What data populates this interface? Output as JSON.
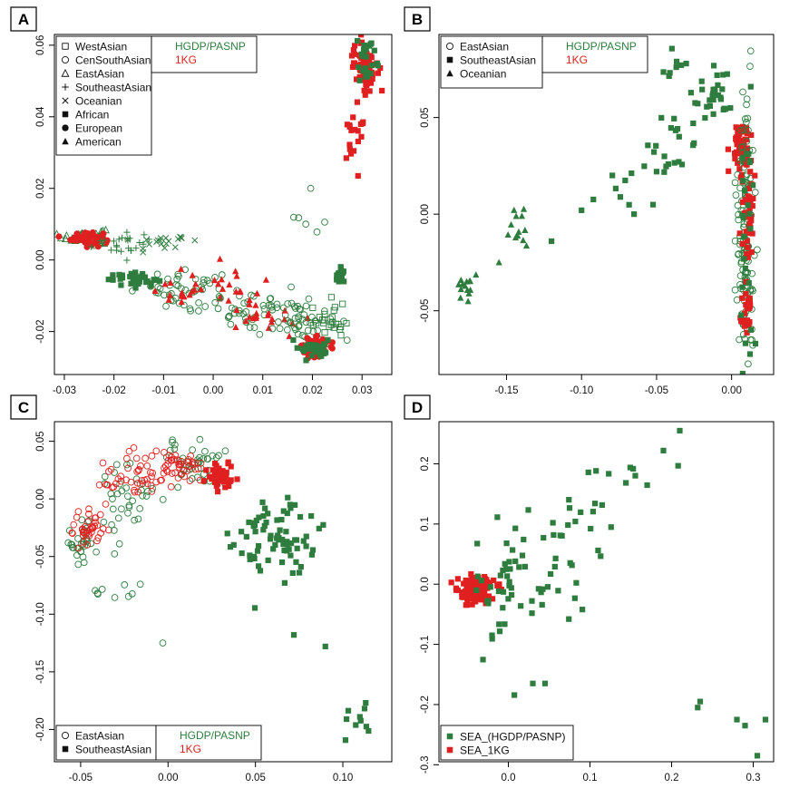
{
  "colors": {
    "hgdp": "#2e7d3e",
    "kg": "#e02020",
    "axis": "#000000"
  },
  "chart_data": [
    {
      "type": "scatter",
      "panel": "A",
      "xlim": [
        -0.032,
        0.036
      ],
      "ylim": [
        -0.032,
        0.063
      ],
      "xticks": {
        "values": [
          -0.03,
          -0.02,
          -0.01,
          0.0,
          0.01,
          0.02,
          0.03
        ],
        "labels": [
          "-0.03",
          "-0.02",
          "-0.01",
          "0.00",
          "0.01",
          "0.02",
          "0.03"
        ]
      },
      "yticks": {
        "values": [
          -0.02,
          0.0,
          0.02,
          0.04,
          0.06
        ],
        "labels": [
          "-0.02",
          "0.00",
          "0.02",
          "0.04",
          "0.06"
        ]
      },
      "legend_position": "top-left",
      "legend_shapes": [
        {
          "shape": "square-open",
          "label": "WestAsian"
        },
        {
          "shape": "circle-open",
          "label": "CenSouthAsian"
        },
        {
          "shape": "triangle-open",
          "label": "EastAsian"
        },
        {
          "shape": "plus",
          "label": "SoutheastAsian"
        },
        {
          "shape": "cross",
          "label": "Oceanian"
        },
        {
          "shape": "square",
          "label": "African"
        },
        {
          "shape": "circle",
          "label": "European"
        },
        {
          "shape": "triangle",
          "label": "American"
        }
      ],
      "legend_sources": [
        {
          "label": "HGDP/PASNP",
          "color": "#2e7d3e"
        },
        {
          "label": "1KG",
          "color": "#e02020"
        }
      ],
      "clusters": [
        {
          "color": "#2e7d3e",
          "shape": "triangle-open",
          "cx": -0.026,
          "cy": 0.0065,
          "sx": 0.0022,
          "sy": 0.0012,
          "n": 40
        },
        {
          "color": "#e02020",
          "shape": "circle",
          "cx": -0.0255,
          "cy": 0.0062,
          "sx": 0.0016,
          "sy": 0.0009,
          "n": 60
        },
        {
          "color": "#2e7d3e",
          "shape": "plus",
          "cx": -0.019,
          "cy": 0.0045,
          "sx": 0.0035,
          "sy": 0.0015,
          "n": 25
        },
        {
          "color": "#2e7d3e",
          "shape": "cross",
          "cx": -0.01,
          "cy": 0.005,
          "sx": 0.0035,
          "sy": 0.0015,
          "n": 20
        },
        {
          "color": "#2e7d3e",
          "shape": "square",
          "cx": -0.016,
          "cy": -0.0055,
          "sx": 0.0025,
          "sy": 0.0009,
          "n": 30
        },
        {
          "color": "#2e7d3e",
          "shape": "circle-open",
          "cx": -0.005,
          "cy": -0.0085,
          "sx": 0.0055,
          "sy": 0.0025,
          "n": 45
        },
        {
          "color": "#e02020",
          "shape": "triangle",
          "cx": -0.004,
          "cy": -0.0085,
          "sx": 0.0045,
          "sy": 0.002,
          "n": 25
        },
        {
          "color": "#2e7d3e",
          "shape": "circle-open",
          "cx": 0.008,
          "cy": -0.014,
          "sx": 0.0045,
          "sy": 0.003,
          "n": 45
        },
        {
          "color": "#e02020",
          "shape": "triangle",
          "cx": 0.01,
          "cy": -0.012,
          "sx": 0.0045,
          "sy": 0.0045,
          "n": 30
        },
        {
          "color": "#2e7d3e",
          "shape": "circle-open",
          "cx": 0.018,
          "cy": -0.017,
          "sx": 0.003,
          "sy": 0.003,
          "n": 40
        },
        {
          "color": "#2e7d3e",
          "shape": "square-open",
          "cx": 0.023,
          "cy": -0.017,
          "sx": 0.0018,
          "sy": 0.003,
          "n": 25
        },
        {
          "color": "#e02020",
          "shape": "circle",
          "cx": 0.0205,
          "cy": -0.0245,
          "sx": 0.0013,
          "sy": 0.0013,
          "n": 110
        },
        {
          "color": "#2e7d3e",
          "shape": "square",
          "cx": 0.0205,
          "cy": -0.0245,
          "sx": 0.0015,
          "sy": 0.0016,
          "n": 30
        },
        {
          "color": "#2e7d3e",
          "shape": "square",
          "cx": 0.0255,
          "cy": -0.004,
          "sx": 0.0007,
          "sy": 0.0012,
          "n": 15
        },
        {
          "color": "#e02020",
          "shape": "square",
          "cx": 0.0305,
          "cy": 0.054,
          "sx": 0.0012,
          "sy": 0.0032,
          "n": 80
        },
        {
          "color": "#2e7d3e",
          "shape": "square",
          "cx": 0.0312,
          "cy": 0.056,
          "sx": 0.0012,
          "sy": 0.0035,
          "n": 25
        },
        {
          "color": "#e02020",
          "shape": "square",
          "cx": 0.0285,
          "cy": 0.036,
          "sx": 0.0015,
          "sy": 0.006,
          "n": 20
        },
        {
          "color": "#2e7d3e",
          "shape": "circle-open",
          "cx": 0.02,
          "cy": 0.012,
          "sx": 0.003,
          "sy": 0.005,
          "n": 6
        }
      ]
    },
    {
      "type": "scatter",
      "panel": "B",
      "xlim": [
        -0.195,
        0.028
      ],
      "ylim": [
        -0.083,
        0.093
      ],
      "xticks": {
        "values": [
          -0.15,
          -0.1,
          -0.05,
          0.0
        ],
        "labels": [
          "-0.15",
          "-0.10",
          "-0.05",
          "0.00"
        ]
      },
      "yticks": {
        "values": [
          -0.05,
          0.0,
          0.05
        ],
        "labels": [
          "-0.05",
          "0.00",
          "0.05"
        ]
      },
      "legend_position": "top-left",
      "legend_shapes": [
        {
          "shape": "circle-open",
          "label": "EastAsian"
        },
        {
          "shape": "square",
          "label": "SoutheastAsian"
        },
        {
          "shape": "triangle",
          "label": "Oceanian"
        }
      ],
      "legend_sources": [
        {
          "label": "HGDP/PASNP",
          "color": "#2e7d3e"
        },
        {
          "label": "1KG",
          "color": "#e02020"
        }
      ],
      "clusters": [
        {
          "color": "#2e7d3e",
          "shape": "triangle",
          "cx": -0.178,
          "cy": -0.037,
          "sx": 0.003,
          "sy": 0.005,
          "n": 14
        },
        {
          "color": "#2e7d3e",
          "shape": "triangle",
          "cx": -0.141,
          "cy": -0.007,
          "sx": 0.004,
          "sy": 0.006,
          "n": 12
        },
        {
          "color": "#2e7d3e",
          "shape": "square",
          "cx": -0.07,
          "cy": 0.015,
          "sx": 0.012,
          "sy": 0.008,
          "n": 8
        },
        {
          "color": "#2e7d3e",
          "shape": "square",
          "cx": -0.038,
          "cy": 0.035,
          "sx": 0.008,
          "sy": 0.01,
          "n": 20
        },
        {
          "color": "#2e7d3e",
          "shape": "square",
          "cx": -0.04,
          "cy": 0.075,
          "sx": 0.005,
          "sy": 0.007,
          "n": 8
        },
        {
          "color": "#2e7d3e",
          "shape": "square",
          "cx": -0.012,
          "cy": 0.062,
          "sx": 0.007,
          "sy": 0.007,
          "n": 30
        },
        {
          "color": "#e02020",
          "shape": "square",
          "cx": 0.006,
          "cy": 0.036,
          "sx": 0.0025,
          "sy": 0.006,
          "n": 55
        },
        {
          "color": "#2e7d3e",
          "shape": "circle-open",
          "cx": 0.009,
          "cy": -0.01,
          "sx": 0.003,
          "sy": 0.035,
          "n": 140
        },
        {
          "color": "#e02020",
          "shape": "square",
          "cx": 0.011,
          "cy": 0.005,
          "sx": 0.0018,
          "sy": 0.015,
          "n": 45
        },
        {
          "color": "#e02020",
          "shape": "square",
          "cx": 0.01,
          "cy": -0.05,
          "sx": 0.002,
          "sy": 0.006,
          "n": 25
        },
        {
          "color": "#2e7d3e",
          "shape": "square",
          "cx": 0.01,
          "cy": -0.01,
          "sx": 0.003,
          "sy": 0.03,
          "n": 25
        }
      ],
      "points": [
        {
          "x": -0.12,
          "y": -0.014,
          "color": "#2e7d3e",
          "shape": "square"
        },
        {
          "x": -0.1,
          "y": 0.002,
          "color": "#2e7d3e",
          "shape": "square"
        },
        {
          "x": -0.155,
          "y": -0.025,
          "color": "#2e7d3e",
          "shape": "triangle"
        },
        {
          "x": -0.05,
          "y": 0.022,
          "color": "#2e7d3e",
          "shape": "square"
        },
        {
          "x": -0.065,
          "y": 0.0,
          "color": "#2e7d3e",
          "shape": "square"
        }
      ]
    },
    {
      "type": "scatter",
      "panel": "C",
      "xlim": [
        -0.065,
        0.128
      ],
      "ylim": [
        -0.228,
        0.067
      ],
      "xticks": {
        "values": [
          -0.05,
          0.0,
          0.05,
          0.1
        ],
        "labels": [
          "-0.05",
          "0.00",
          "0.05",
          "0.10"
        ]
      },
      "yticks": {
        "values": [
          -0.2,
          -0.15,
          -0.1,
          -0.05,
          0.0,
          0.05
        ],
        "labels": [
          "-0.20",
          "-0.15",
          "-0.10",
          "-0.05",
          "0.00",
          "0.05"
        ]
      },
      "legend_position": "bottom-left",
      "legend_shapes": [
        {
          "shape": "circle-open",
          "label": "EastAsian"
        },
        {
          "shape": "square",
          "label": "SoutheastAsian"
        }
      ],
      "legend_sources": [
        {
          "label": "HGDP/PASNP",
          "color": "#2e7d3e"
        },
        {
          "label": "1KG",
          "color": "#e02020"
        }
      ],
      "clusters": [
        {
          "color": "#2e7d3e",
          "shape": "circle-open",
          "cx": -0.048,
          "cy": -0.035,
          "sx": 0.006,
          "sy": 0.012,
          "n": 30
        },
        {
          "color": "#e02020",
          "shape": "circle-open",
          "cx": -0.045,
          "cy": -0.025,
          "sx": 0.005,
          "sy": 0.008,
          "n": 40
        },
        {
          "color": "#2e7d3e",
          "shape": "circle-open",
          "cx": -0.025,
          "cy": -0.005,
          "sx": 0.01,
          "sy": 0.02,
          "n": 35
        },
        {
          "color": "#e02020",
          "shape": "circle-open",
          "cx": -0.018,
          "cy": 0.018,
          "sx": 0.009,
          "sy": 0.01,
          "n": 45
        },
        {
          "color": "#2e7d3e",
          "shape": "circle-open",
          "cx": 0.015,
          "cy": 0.032,
          "sx": 0.009,
          "sy": 0.01,
          "n": 40
        },
        {
          "color": "#e02020",
          "shape": "circle-open",
          "cx": 0.005,
          "cy": 0.028,
          "sx": 0.008,
          "sy": 0.007,
          "n": 40
        },
        {
          "color": "#e02020",
          "shape": "square",
          "cx": 0.031,
          "cy": 0.02,
          "sx": 0.004,
          "sy": 0.006,
          "n": 45
        },
        {
          "color": "#2e7d3e",
          "shape": "square",
          "cx": 0.062,
          "cy": -0.035,
          "sx": 0.012,
          "sy": 0.018,
          "n": 75
        },
        {
          "color": "#2e7d3e",
          "shape": "square",
          "cx": 0.108,
          "cy": -0.195,
          "sx": 0.006,
          "sy": 0.01,
          "n": 10
        },
        {
          "color": "#2e7d3e",
          "shape": "circle-open",
          "cx": -0.03,
          "cy": -0.08,
          "sx": 0.012,
          "sy": 0.01,
          "n": 10
        }
      ],
      "points": [
        {
          "x": 0.09,
          "y": -0.128,
          "color": "#2e7d3e",
          "shape": "square"
        },
        {
          "x": 0.072,
          "y": -0.118,
          "color": "#2e7d3e",
          "shape": "square"
        },
        {
          "x": -0.003,
          "y": -0.125,
          "color": "#2e7d3e",
          "shape": "circle-open"
        }
      ]
    },
    {
      "type": "scatter",
      "panel": "D",
      "xlim": [
        -0.085,
        0.325
      ],
      "ylim": [
        -0.295,
        0.27
      ],
      "xticks": {
        "values": [
          0.0,
          0.1,
          0.2,
          0.3
        ],
        "labels": [
          "0.0",
          "0.1",
          "0.2",
          "0.3"
        ]
      },
      "yticks": {
        "values": [
          -0.3,
          -0.2,
          -0.1,
          0.0,
          0.1,
          0.2
        ],
        "labels": [
          "-0.3",
          "-0.2",
          "-0.1",
          "0.0",
          "0.1",
          "0.2"
        ]
      },
      "legend_position": "bottom-left",
      "legend_series": [
        {
          "shape": "square",
          "label": "SEA_(HGDP/PASNP)",
          "color": "#2e7d3e"
        },
        {
          "shape": "square",
          "label": "SEA_1KG",
          "color": "#e02020"
        }
      ],
      "clusters": [
        {
          "color": "#e02020",
          "shape": "square",
          "cx": -0.042,
          "cy": -0.01,
          "sx": 0.012,
          "sy": 0.013,
          "n": 110
        },
        {
          "color": "#2e7d3e",
          "shape": "square",
          "cx": 0.005,
          "cy": 0.0,
          "sx": 0.022,
          "sy": 0.055,
          "n": 45
        },
        {
          "color": "#2e7d3e",
          "shape": "square",
          "cx": 0.06,
          "cy": 0.03,
          "sx": 0.02,
          "sy": 0.04,
          "n": 20
        },
        {
          "color": "#2e7d3e",
          "shape": "square",
          "cx": 0.11,
          "cy": 0.125,
          "sx": 0.025,
          "sy": 0.025,
          "n": 12
        },
        {
          "color": "#2e7d3e",
          "shape": "square",
          "cx": 0.165,
          "cy": 0.19,
          "sx": 0.02,
          "sy": 0.015,
          "n": 6
        }
      ],
      "points": [
        {
          "x": 0.21,
          "y": 0.255,
          "color": "#2e7d3e",
          "shape": "square"
        },
        {
          "x": 0.19,
          "y": 0.222,
          "color": "#2e7d3e",
          "shape": "square"
        },
        {
          "x": 0.235,
          "y": -0.195,
          "color": "#2e7d3e",
          "shape": "square"
        },
        {
          "x": 0.232,
          "y": -0.205,
          "color": "#2e7d3e",
          "shape": "square"
        },
        {
          "x": 0.28,
          "y": -0.225,
          "color": "#2e7d3e",
          "shape": "square"
        },
        {
          "x": 0.29,
          "y": -0.235,
          "color": "#2e7d3e",
          "shape": "square"
        },
        {
          "x": 0.315,
          "y": -0.225,
          "color": "#2e7d3e",
          "shape": "square"
        },
        {
          "x": 0.305,
          "y": -0.285,
          "color": "#2e7d3e",
          "shape": "square"
        },
        {
          "x": 0.03,
          "y": -0.165,
          "color": "#2e7d3e",
          "shape": "square"
        },
        {
          "x": 0.045,
          "y": -0.165,
          "color": "#2e7d3e",
          "shape": "square"
        },
        {
          "x": -0.02,
          "y": -0.085,
          "color": "#2e7d3e",
          "shape": "square"
        }
      ]
    }
  ]
}
